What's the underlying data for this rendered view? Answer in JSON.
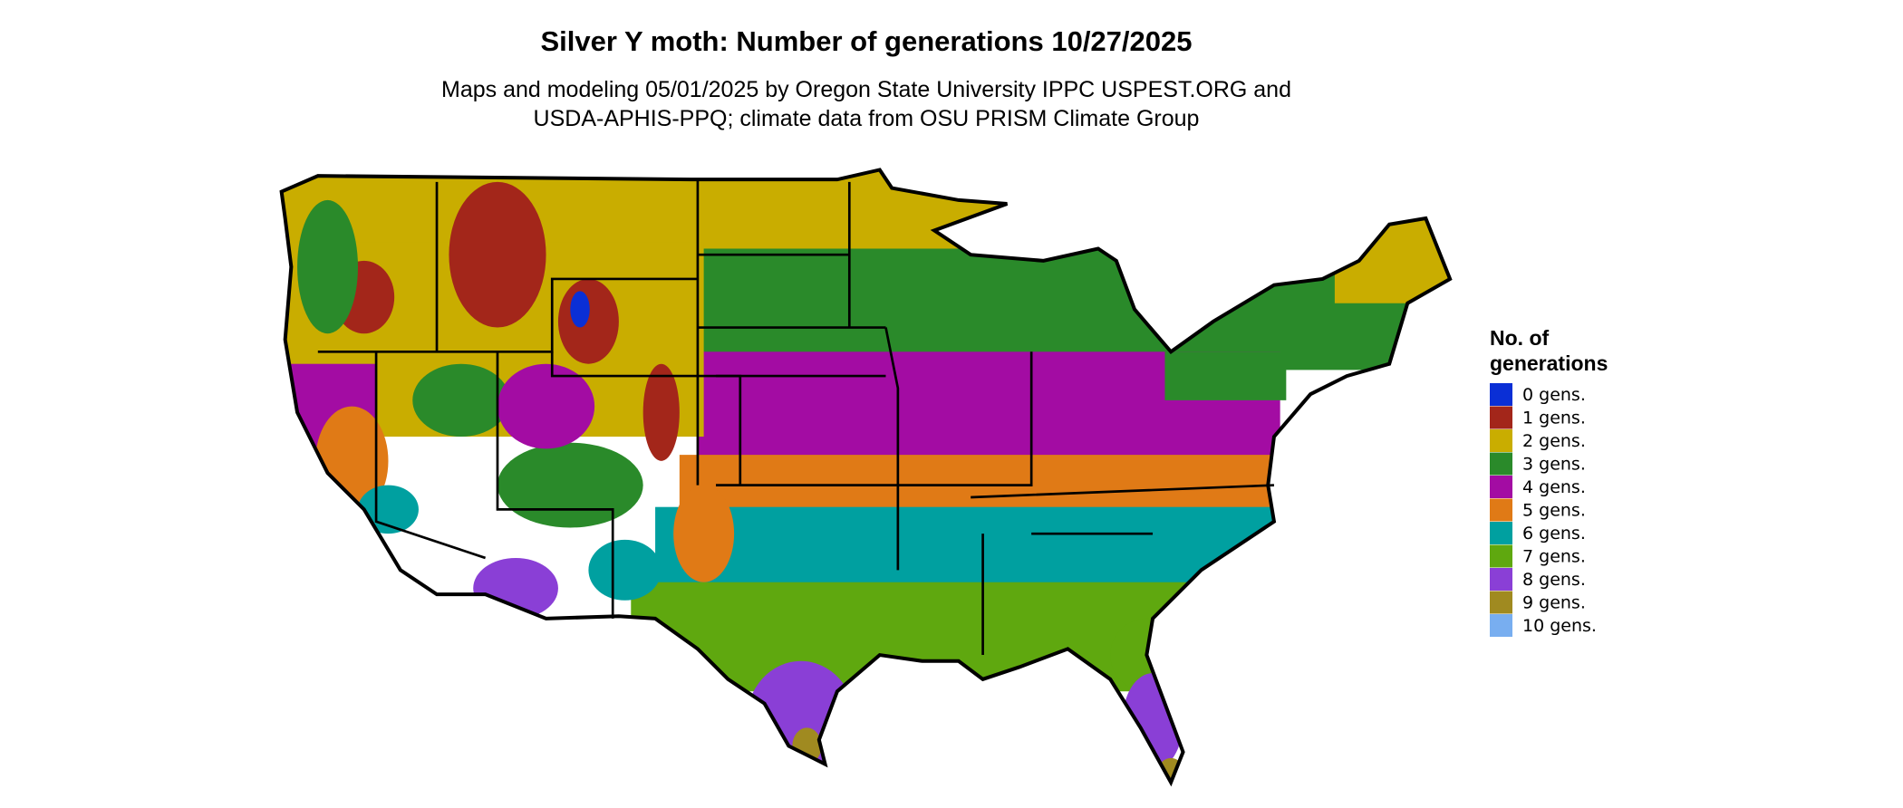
{
  "title": "Silver Y moth: Number of generations 10/27/2025",
  "subtitle": [
    "Maps and modeling 05/01/2025 by Oregon State University IPPC USPEST.ORG and",
    "USDA-APHIS-PPQ; climate data from OSU PRISM Climate Group"
  ],
  "legend": {
    "title": [
      "No. of",
      "generations"
    ],
    "items": [
      {
        "label": "0 gens.",
        "color": "#0a2fd6"
      },
      {
        "label": "1 gens.",
        "color": "#a3261a"
      },
      {
        "label": "2 gens.",
        "color": "#c9ad00"
      },
      {
        "label": "3 gens.",
        "color": "#2a8a2a"
      },
      {
        "label": "4 gens.",
        "color": "#a30ca3"
      },
      {
        "label": "5 gens.",
        "color": "#e07a16"
      },
      {
        "label": "6 gens.",
        "color": "#00a0a0"
      },
      {
        "label": "7 gens.",
        "color": "#5fa80f"
      },
      {
        "label": "8 gens.",
        "color": "#8a3fd6"
      },
      {
        "label": "9 gens.",
        "color": "#a08a20"
      },
      {
        "label": "10 gens.",
        "color": "#78aef0"
      }
    ]
  }
}
